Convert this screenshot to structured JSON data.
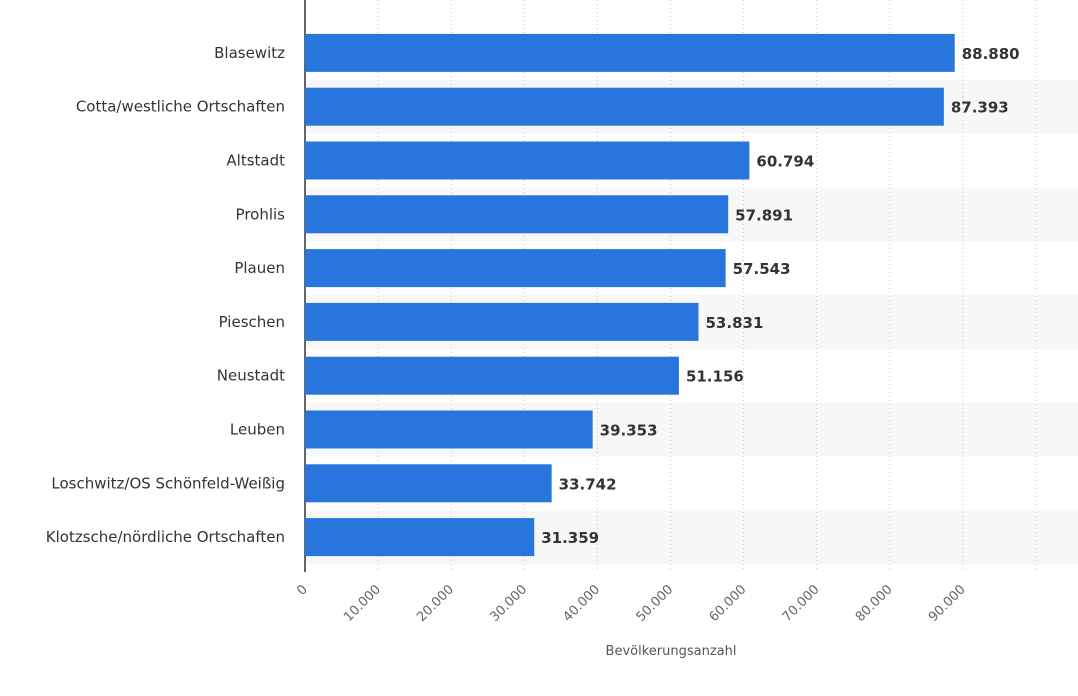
{
  "chart_data": {
    "type": "bar",
    "orientation": "horizontal",
    "categories": [
      "Blasewitz",
      "Cotta/westliche Ortschaften",
      "Altstadt",
      "Prohlis",
      "Plauen",
      "Pieschen",
      "Neustadt",
      "Leuben",
      "Loschwitz/OS Schönfeld-Weißig",
      "Klotzsche/nördliche Ortschaften"
    ],
    "values": [
      88880,
      87393,
      60794,
      57891,
      57543,
      53831,
      51156,
      39353,
      33742,
      31359
    ],
    "value_labels": [
      "88.880",
      "87.393",
      "60.794",
      "57.891",
      "57.543",
      "53.831",
      "51.156",
      "39.353",
      "33.742",
      "31.359"
    ],
    "x_ticks": [
      0,
      10000,
      20000,
      30000,
      40000,
      50000,
      60000,
      70000,
      80000,
      90000
    ],
    "x_tick_labels": [
      "0",
      "10.000",
      "20.000",
      "30.000",
      "40.000",
      "50.000",
      "60.000",
      "70.000",
      "80.000",
      "90.000"
    ],
    "xlim": [
      0,
      100000
    ],
    "title": "",
    "xlabel": "Bevölkerungsanzahl",
    "ylabel": "",
    "grid": "vertical dotted",
    "bar_color": "#2876dd",
    "alt_row_color": "#f7f7f7"
  }
}
